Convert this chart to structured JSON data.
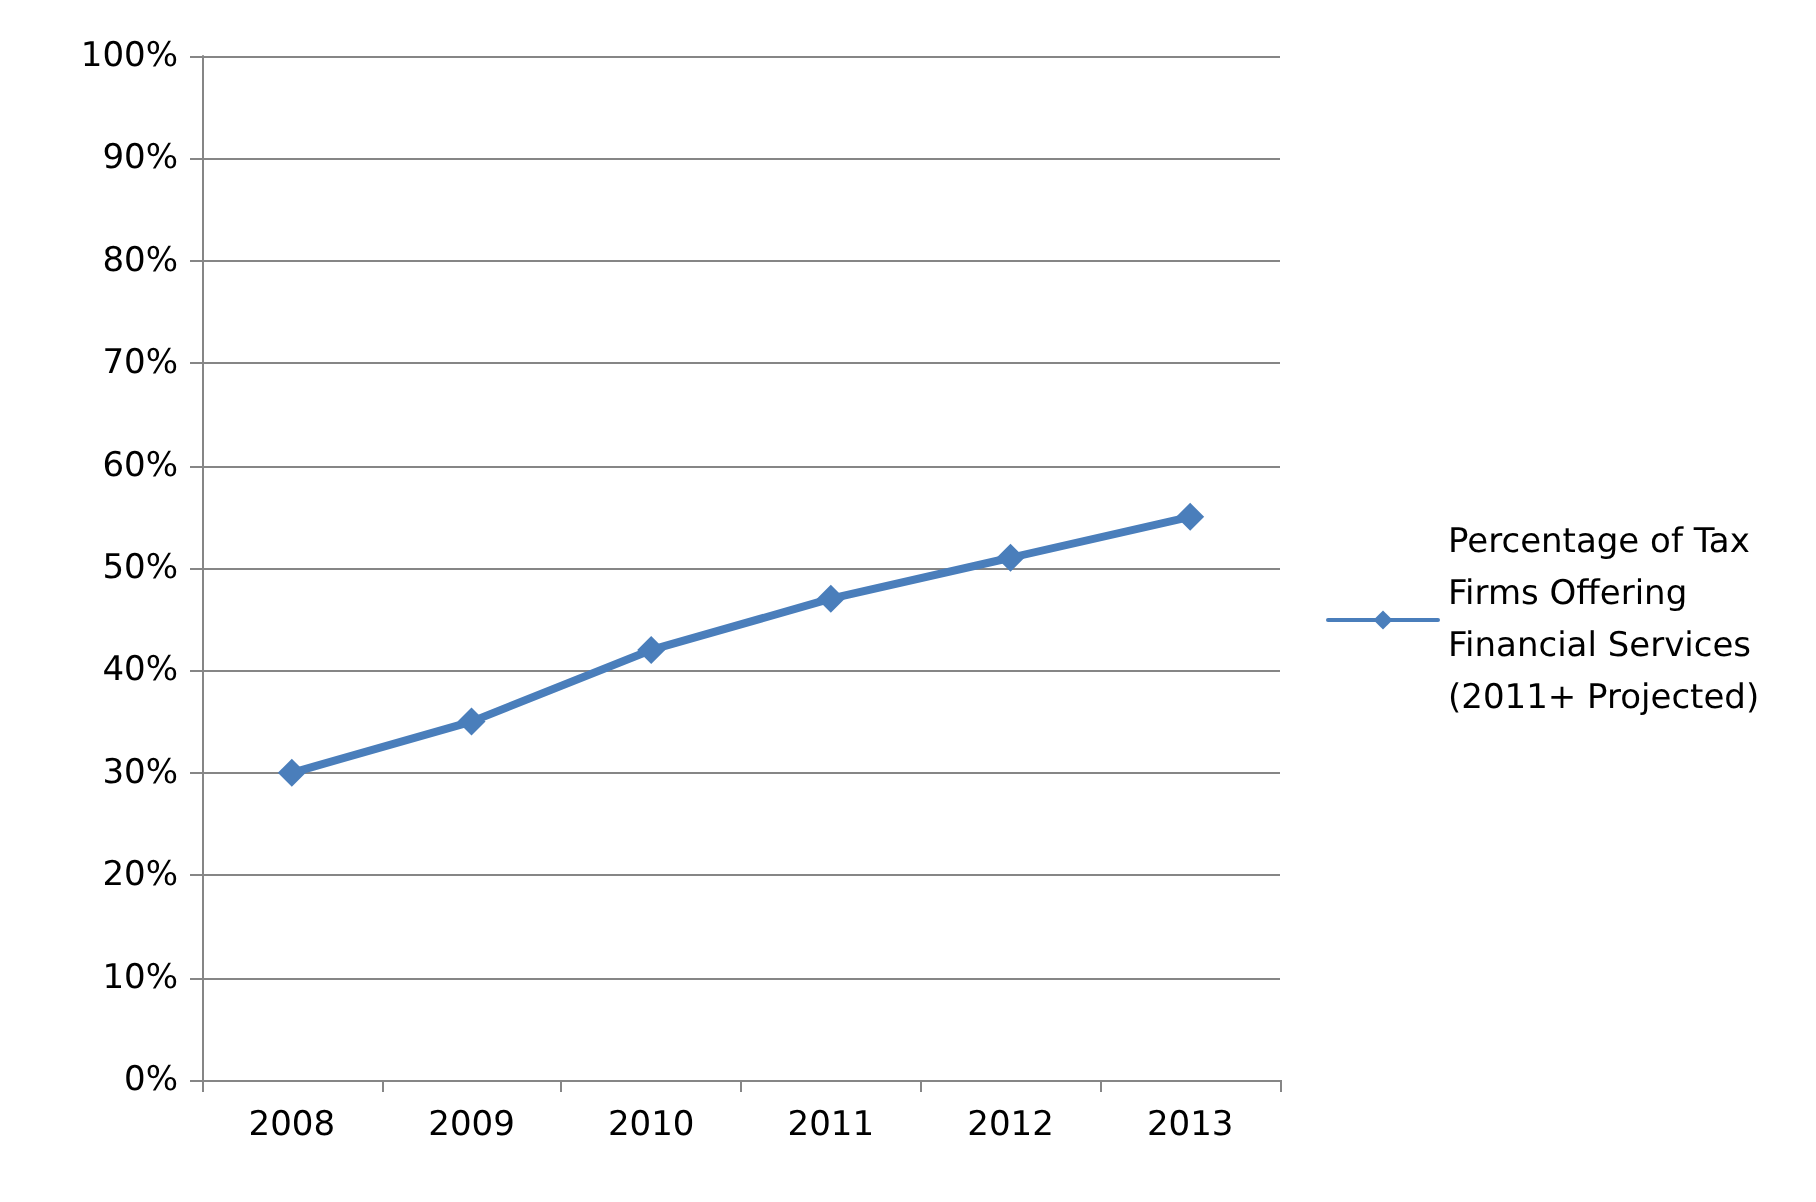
{
  "chart_data": {
    "type": "line",
    "categories": [
      "2008",
      "2009",
      "2010",
      "2011",
      "2012",
      "2013"
    ],
    "series": [
      {
        "name": "Percentage of Tax Firms Offering Financial Services (2011+ Projected)",
        "color": "#4a7ebb",
        "values": [
          30,
          35,
          42,
          47,
          51,
          55
        ]
      }
    ],
    "ylim": [
      0,
      100
    ],
    "yticks": [
      {
        "value": 0,
        "label": "0%"
      },
      {
        "value": 10,
        "label": "10%"
      },
      {
        "value": 20,
        "label": "20%"
      },
      {
        "value": 30,
        "label": "30%"
      },
      {
        "value": 40,
        "label": "40%"
      },
      {
        "value": 50,
        "label": "50%"
      },
      {
        "value": 60,
        "label": "60%"
      },
      {
        "value": 70,
        "label": "70%"
      },
      {
        "value": 80,
        "label": "80%"
      },
      {
        "value": 90,
        "label": "90%"
      },
      {
        "value": 100,
        "label": "100%"
      }
    ],
    "grid": "y",
    "legend": "right",
    "marker": "diamond",
    "line_style": "solid"
  }
}
